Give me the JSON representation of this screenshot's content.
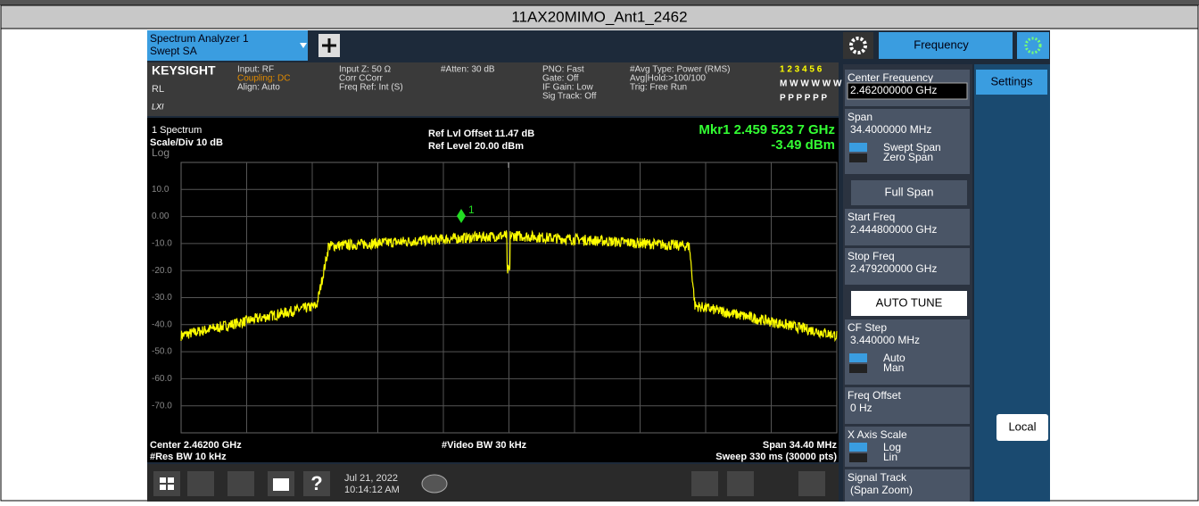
{
  "title": "11AX20MIMO_Ant1_2462",
  "tab": {
    "line1": "Spectrum Analyzer 1",
    "line2": "Swept SA"
  },
  "mode_tab": "Frequency",
  "info": {
    "brand": "KEYSIGHT",
    "rl": "RL",
    "lxi": "LXI",
    "col1": [
      "Input: RF",
      "Coupling: DC",
      "Align: Auto"
    ],
    "col2": [
      "Input Z: 50 Ω",
      "Corr CCorr",
      "Freq Ref: Int (S)"
    ],
    "col3": [
      "#Atten: 30 dB"
    ],
    "col4": [
      "PNO: Fast",
      "Gate: Off",
      "IF Gain: Low",
      "Sig Track: Off"
    ],
    "col5": [
      "#Avg Type: Power (RMS)",
      "Avg|Hold:>100/100",
      "Trig: Free Run"
    ],
    "traces": [
      "1 2 3 4 5 6",
      "M W W W W W",
      "P P P P P P"
    ]
  },
  "plot": {
    "window": "1 Spectrum",
    "scale": "Scale/Div 10 dB",
    "log": "Log",
    "ref_offset": "Ref Lvl Offset 11.47 dB",
    "ref_level": "Ref Level 20.00 dBm",
    "marker_freq": "Mkr1  2.459 523 7 GHz",
    "marker_amp": "-3.49 dBm",
    "marker_id": "1",
    "y_labels": [
      "10.0",
      "0.00",
      "-10.0",
      "-20.0",
      "-30.0",
      "-40.0",
      "-50.0",
      "-60.0",
      "-70.0"
    ],
    "center": "Center 2.46200 GHz",
    "res_bw": "#Res BW 10 kHz",
    "video_bw": "#Video BW 30 kHz",
    "span": "Span 34.40 MHz",
    "sweep": "Sweep 330 ms (30000 pts)"
  },
  "taskbar": {
    "date": "Jul 21, 2022",
    "time": "10:14:12 AM"
  },
  "menu": [
    {
      "label": "Center Frequency",
      "value": "2.462000000 GHz"
    },
    {
      "label": "Span",
      "value": "34.4000000 MHz",
      "opt1": "Swept Span",
      "opt2": "Zero Span"
    },
    {
      "button": "Full Span"
    },
    {
      "label": "Start Freq",
      "value": "2.444800000 GHz"
    },
    {
      "label": "Stop Freq",
      "value": "2.479200000 GHz"
    },
    {
      "button": "AUTO TUNE"
    },
    {
      "label": "CF Step",
      "value": "3.440000 MHz",
      "opt1": "Auto",
      "opt2": "Man"
    },
    {
      "label": "Freq Offset",
      "value": "0 Hz"
    },
    {
      "label": "X Axis Scale",
      "opt1": "Log",
      "opt2": "Lin"
    },
    {
      "label": "Signal Track",
      "value": "(Span Zoom)"
    }
  ],
  "side": {
    "settings": "Settings",
    "local": "Local"
  }
}
